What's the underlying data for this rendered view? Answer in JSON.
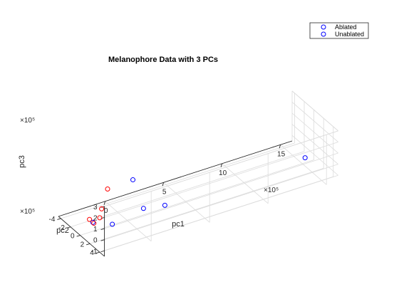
{
  "chart_data": {
    "type": "scatter",
    "title": "Melanophore Data with 3 PCs",
    "xlabel": "pc1",
    "ylabel": "pc2",
    "zlabel": "pc3",
    "x_exponent": "×10⁵",
    "y_exponent": "×10⁵",
    "z_exponent": "×10⁵",
    "x_ticks": [
      0,
      5,
      10,
      15
    ],
    "y_ticks": [
      -4,
      -2,
      0,
      2,
      4
    ],
    "z_ticks": [
      -1,
      0,
      1,
      2,
      3
    ],
    "xlim": [
      -4,
      16
    ],
    "ylim": [
      -4.5,
      5
    ],
    "zlim": [
      -1.5,
      3
    ],
    "grid": true,
    "legend_position": "top-right",
    "series": [
      {
        "name": "Ablated",
        "color": "#0000ff",
        "points": [
          {
            "x": 14,
            "y": 3,
            "z": 0.5
          },
          {
            "x": 2,
            "y": -3.6,
            "z": 0.1
          },
          {
            "x": 2,
            "y": 3,
            "z": 0.3
          },
          {
            "x": 1,
            "y": 1,
            "z": -0.4
          },
          {
            "x": -2,
            "y": 1.8,
            "z": -0.5
          },
          {
            "x": -3,
            "y": 0.2,
            "z": -0.6
          }
        ]
      },
      {
        "name": "Unablated",
        "color": "#ff0000",
        "points": [
          {
            "x": -3,
            "y": 2,
            "z": 1.3
          },
          {
            "x": -3,
            "y": 0.4,
            "z": -0.6
          },
          {
            "x": -3,
            "y": -0.5,
            "z": -0.6
          },
          {
            "x": -2,
            "y": -0.8,
            "z": -0.9
          },
          {
            "x": 0,
            "y": -4,
            "z": -0.2
          }
        ]
      }
    ]
  }
}
